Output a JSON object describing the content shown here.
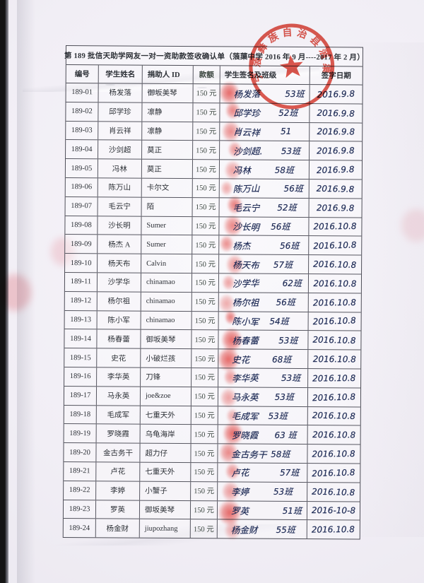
{
  "page": {
    "title": "第 189 批信天助学网友一对一资助款签收确认单（蒗蕖中学 2016 年 9 月----2017 年 2 月）"
  },
  "table": {
    "headers": [
      "编号",
      "学生姓名",
      "捐助人 ID",
      "款额",
      "学生签名及班级",
      "签字日期"
    ],
    "rows": [
      {
        "id": "189-01",
        "name": "杨发落",
        "donor": "御坂美琴",
        "amount": "150 元",
        "sig": "杨发落",
        "class": "53班",
        "date": "2016.9.8"
      },
      {
        "id": "189-02",
        "name": "邱学珍",
        "donor": "凛静",
        "amount": "150 元",
        "sig": "邱学珍",
        "class": "52班",
        "date": "2016.9.8"
      },
      {
        "id": "189-03",
        "name": "肖云祥",
        "donor": "凛静",
        "amount": "150 元",
        "sig": "肖云祥",
        "class": "51",
        "date": "2016.9.8"
      },
      {
        "id": "189-04",
        "name": "沙剑超",
        "donor": "莫正",
        "amount": "150 元",
        "sig": "沙剑超.",
        "class": "53班",
        "date": "2016.9.8"
      },
      {
        "id": "189-05",
        "name": "冯林",
        "donor": "莫正",
        "amount": "150 元",
        "sig": "冯林",
        "class": "58班",
        "date": "2016.9.8"
      },
      {
        "id": "189-06",
        "name": "陈万山",
        "donor": "卡尔文",
        "amount": "150 元",
        "sig": "陈万山",
        "class": "56班",
        "date": "2016.9.8"
      },
      {
        "id": "189-07",
        "name": "毛云宁",
        "donor": "陌",
        "amount": "150 元",
        "sig": "毛云宁",
        "class": "52班",
        "date": "2016.9.8"
      },
      {
        "id": "189-08",
        "name": "沙长明",
        "donor": "Sumer",
        "amount": "150 元",
        "sig": "沙长明",
        "class": "56班",
        "date": "2016.10.8"
      },
      {
        "id": "189-09",
        "name": "杨杰 A",
        "donor": "Sumer",
        "amount": "150 元",
        "sig": "杨杰",
        "class": "56班",
        "date": "2016.10.8"
      },
      {
        "id": "189-10",
        "name": "杨天布",
        "donor": "Calvin",
        "amount": "150 元",
        "sig": "杨天布",
        "class": "57班",
        "date": "2016.10.8"
      },
      {
        "id": "189-11",
        "name": "沙学华",
        "donor": "chinamao",
        "amount": "150 元",
        "sig": "沙学华",
        "class": "62班",
        "date": "2016.10.8"
      },
      {
        "id": "189-12",
        "name": "杨尔祖",
        "donor": "chinamao",
        "amount": "150 元",
        "sig": "杨尔祖",
        "class": "56班",
        "date": "2016.10.8"
      },
      {
        "id": "189-13",
        "name": "陈小军",
        "donor": "chinamao",
        "amount": "150 元",
        "sig": "陈小军",
        "class": "54班",
        "date": "2016.10.8"
      },
      {
        "id": "189-14",
        "name": "杨春蕾",
        "donor": "御坂美琴",
        "amount": "150 元",
        "sig": "杨春蕾",
        "class": "53班",
        "date": "2016.10.8"
      },
      {
        "id": "189-15",
        "name": "史花",
        "donor": "小破烂孩",
        "amount": "150 元",
        "sig": "史花",
        "class": "68班",
        "date": "2016.10.8"
      },
      {
        "id": "189-16",
        "name": "李华英",
        "donor": "刀锋",
        "amount": "150 元",
        "sig": "李华英",
        "class": "53班",
        "date": "2016.10.8"
      },
      {
        "id": "189-17",
        "name": "马永英",
        "donor": "joe&zoe",
        "amount": "150 元",
        "sig": "马永英",
        "class": "53班",
        "date": "2016.10.8"
      },
      {
        "id": "189-18",
        "name": "毛成军",
        "donor": "七重天外",
        "amount": "150 元",
        "sig": "毛成军",
        "class": "53班",
        "date": "2016.10.8"
      },
      {
        "id": "189-19",
        "name": "罗晓霞",
        "donor": "乌龟海岸",
        "amount": "150 元",
        "sig": "罗晓霞",
        "class": "63 班",
        "date": "2016.10.8"
      },
      {
        "id": "189-20",
        "name": "金古务干",
        "donor": "超力仔",
        "amount": "150 元",
        "sig": "金古务干",
        "class": "58班",
        "date": "2016.10.8"
      },
      {
        "id": "189-21",
        "name": "卢花",
        "donor": "七重天外",
        "amount": "150 元",
        "sig": "卢花",
        "class": "57班",
        "date": "2016.10.8"
      },
      {
        "id": "189-22",
        "name": "李婷",
        "donor": "小蟹子",
        "amount": "150 元",
        "sig": "李婷",
        "class": "53班",
        "date": "2016.10.8"
      },
      {
        "id": "189-23",
        "name": "罗英",
        "donor": "御坂美琴",
        "amount": "150 元",
        "sig": "罗英",
        "class": "51班",
        "date": "2016-10-8"
      },
      {
        "id": "189-24",
        "name": "杨金财",
        "donor": "jiupozhang",
        "amount": "150 元",
        "sig": "杨金财",
        "class": "55班",
        "date": "2016.10.8"
      }
    ]
  },
  "stamp": {
    "arc_text": "宁蒗彝族自治县蒗蕖中学",
    "color": "#d93a2e"
  }
}
